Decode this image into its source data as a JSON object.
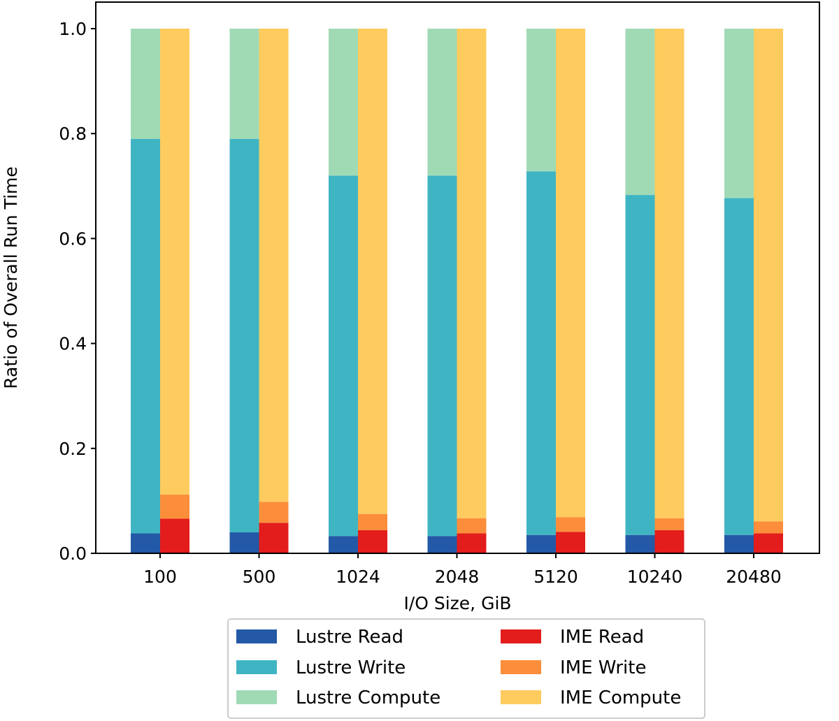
{
  "chart_data": {
    "type": "bar",
    "stacked": true,
    "title": "",
    "xlabel": "I/O Size, GiB",
    "ylabel": "Ratio of Overall Run Time",
    "ylim": [
      0,
      1.0
    ],
    "yticks": [
      "0.0",
      "0.2",
      "0.4",
      "0.6",
      "0.8",
      "1.0"
    ],
    "grid": false,
    "legend_position": "bottom-center",
    "categories": [
      "100",
      "500",
      "1024",
      "2048",
      "5120",
      "10240",
      "20480"
    ],
    "groups": [
      {
        "name": "Lustre",
        "position": "left",
        "series": [
          {
            "name": "Lustre Read",
            "color": "#2359a6",
            "values": [
              0.038,
              0.04,
              0.033,
              0.033,
              0.035,
              0.035,
              0.035
            ]
          },
          {
            "name": "Lustre Write",
            "color": "#3fb5c4",
            "values": [
              0.752,
              0.75,
              0.687,
              0.687,
              0.693,
              0.648,
              0.642
            ]
          },
          {
            "name": "Lustre Compute",
            "color": "#a0dab5",
            "values": [
              0.21,
              0.21,
              0.28,
              0.28,
              0.272,
              0.317,
              0.323
            ]
          }
        ]
      },
      {
        "name": "IME",
        "position": "right",
        "series": [
          {
            "name": "IME Read",
            "color": "#e31c1c",
            "values": [
              0.066,
              0.058,
              0.044,
              0.038,
              0.041,
              0.044,
              0.038
            ]
          },
          {
            "name": "IME Write",
            "color": "#fb8d3b",
            "values": [
              0.046,
              0.04,
              0.031,
              0.029,
              0.028,
              0.023,
              0.023
            ]
          },
          {
            "name": "IME Compute",
            "color": "#fecb5e",
            "values": [
              0.888,
              0.902,
              0.925,
              0.933,
              0.931,
              0.933,
              0.939
            ]
          }
        ]
      }
    ],
    "legend": [
      {
        "label": "Lustre Read",
        "color": "#2359a6"
      },
      {
        "label": "Lustre Write",
        "color": "#3fb5c4"
      },
      {
        "label": "Lustre Compute",
        "color": "#a0dab5"
      },
      {
        "label": "IME Read",
        "color": "#e31c1c"
      },
      {
        "label": "IME Write",
        "color": "#fb8d3b"
      },
      {
        "label": "IME Compute",
        "color": "#fecb5e"
      }
    ]
  }
}
